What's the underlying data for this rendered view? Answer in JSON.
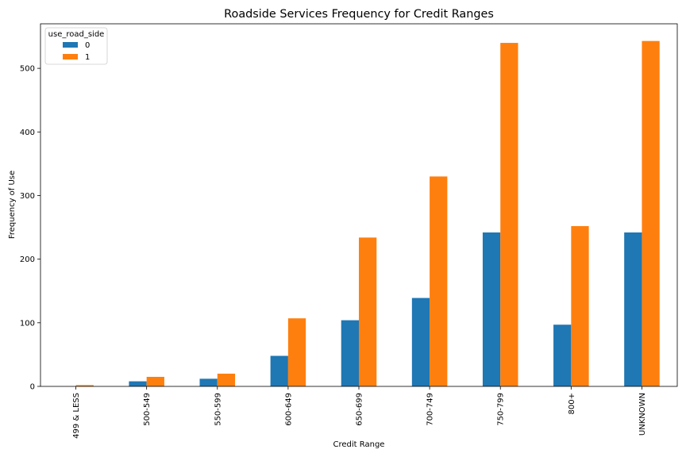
{
  "chart_data": {
    "type": "bar",
    "title": "Roadside Services Frequency for Credit Ranges",
    "xlabel": "Credit Range",
    "ylabel": "Frequency of Use",
    "categories": [
      "499 & LESS",
      "500-549",
      "550-599",
      "600-649",
      "650-699",
      "700-749",
      "750-799",
      "800+",
      "UNKNOWN"
    ],
    "series": [
      {
        "name": "0",
        "color": "#1f77b4",
        "values": [
          0,
          8,
          12,
          48,
          104,
          139,
          242,
          97,
          242
        ]
      },
      {
        "name": "1",
        "color": "#ff7f0e",
        "values": [
          2,
          15,
          20,
          107,
          234,
          330,
          540,
          252,
          543
        ]
      }
    ],
    "ylim": [
      0,
      570
    ],
    "yticks": [
      0,
      100,
      200,
      300,
      400,
      500
    ],
    "legend": {
      "title": "use_road_side",
      "placement": "top-left"
    },
    "grid": false
  }
}
